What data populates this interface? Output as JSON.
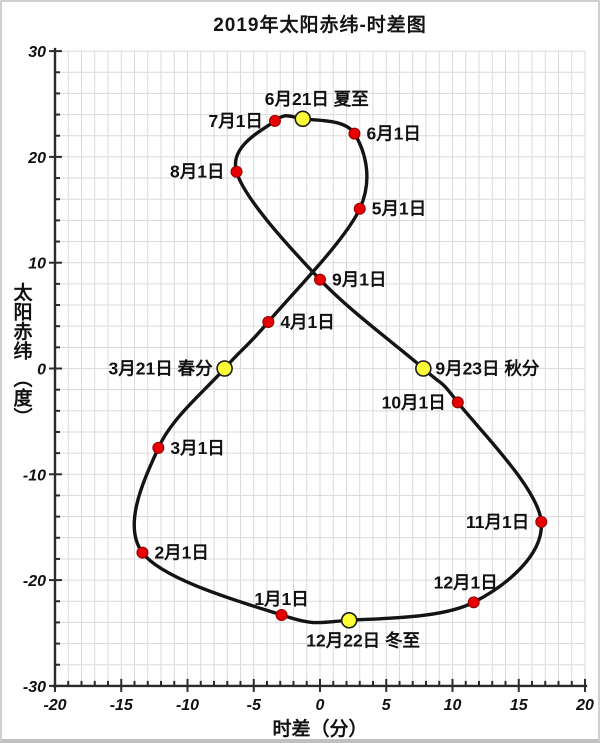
{
  "page": {
    "title": "2019年太阳赤纬-时差图"
  },
  "chart_data": {
    "type": "line",
    "title": "2019年太阳赤纬-时差图",
    "xlabel": "时差（分）",
    "ylabel": "太阳赤纬（度）",
    "xlim": [
      -20,
      20
    ],
    "ylim": [
      -30,
      30
    ],
    "x_ticks_major": [
      -20,
      -15,
      -10,
      -5,
      0,
      5,
      10,
      15,
      20
    ],
    "y_ticks_major": [
      30,
      20,
      10,
      0,
      -10,
      -20,
      -30
    ],
    "x_minor_step": 1,
    "y_minor_step": 2,
    "grid": true,
    "legend": "none",
    "curve_description": "closed analemma figure-eight passing through all dated points in calendar order",
    "points": [
      {
        "label": "1月1日",
        "eot": -2.9,
        "dec": -23.3,
        "marker": "red",
        "label_side": "top",
        "label_dy": -10
      },
      {
        "label": "2月1日",
        "eot": -13.4,
        "dec": -17.4,
        "marker": "red",
        "label_side": "right"
      },
      {
        "label": "3月1日",
        "eot": -12.2,
        "dec": -7.5,
        "marker": "red",
        "label_side": "right"
      },
      {
        "label": "3月21日 春分",
        "eot": -7.2,
        "dec": 0.0,
        "marker": "yellow",
        "label_side": "left"
      },
      {
        "label": "4月1日",
        "eot": -3.9,
        "dec": 4.4,
        "marker": "red",
        "label_side": "right"
      },
      {
        "label": "5月1日",
        "eot": 3.0,
        "dec": 15.1,
        "marker": "red",
        "label_side": "right"
      },
      {
        "label": "6月1日",
        "eot": 2.6,
        "dec": 22.2,
        "marker": "red",
        "label_side": "right"
      },
      {
        "label": "6月21日 夏至",
        "eot": -1.3,
        "dec": 23.6,
        "marker": "yellow",
        "label_side": "top",
        "label_dx": 14
      },
      {
        "label": "7月1日",
        "eot": -3.4,
        "dec": 23.4,
        "marker": "red",
        "label_side": "left"
      },
      {
        "label": "8月1日",
        "eot": -6.3,
        "dec": 18.6,
        "marker": "red",
        "label_side": "left"
      },
      {
        "label": "9月1日",
        "eot": 0.0,
        "dec": 8.4,
        "marker": "red",
        "label_side": "right"
      },
      {
        "label": "9月23日 秋分",
        "eot": 7.8,
        "dec": 0.0,
        "marker": "yellow",
        "label_side": "right"
      },
      {
        "label": "10月1日",
        "eot": 10.4,
        "dec": -3.2,
        "marker": "red",
        "label_side": "left"
      },
      {
        "label": "11月1日",
        "eot": 16.7,
        "dec": -14.5,
        "marker": "red",
        "label_side": "left"
      },
      {
        "label": "12月1日",
        "eot": 11.6,
        "dec": -22.1,
        "marker": "red",
        "label_side": "top",
        "label_dx": -8
      },
      {
        "label": "12月22日 冬至",
        "eot": 2.2,
        "dec": -23.8,
        "marker": "yellow",
        "label_side": "bottom",
        "label_dx": 14
      }
    ],
    "colors": {
      "curve": "#141414",
      "red_dot": "#e60000",
      "red_dot_edge": "#8f0000",
      "yellow_dot": "#ffff35",
      "yellow_dot_edge": "#1a1a1a",
      "grid": "#dadada",
      "axis": "#2b2b2b",
      "text": "#111111"
    }
  }
}
